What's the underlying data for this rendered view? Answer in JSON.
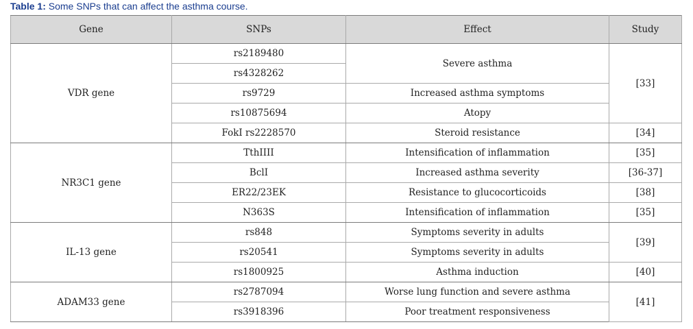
{
  "caption": {
    "label": "Table 1:",
    "text": " Some SNPs that can affect the asthma course."
  },
  "headers": {
    "gene": "Gene",
    "snps": "SNPs",
    "effect": "Effect",
    "study": "Study"
  },
  "groups": [
    {
      "gene": "VDR gene",
      "snps": [
        "rs2189480",
        "rs4328262",
        "rs9729",
        "rs10875694",
        "FokI rs2228570"
      ],
      "effects": [
        "Severe asthma",
        "Increased asthma symptoms",
        "Atopy",
        "Steroid resistance"
      ],
      "studies": [
        "[33]",
        "[34]"
      ]
    },
    {
      "gene": "NR3C1 gene",
      "snps": [
        "TthIIII",
        "BclI",
        "ER22/23EK",
        "N363S"
      ],
      "effects": [
        "Intensification of inflammation",
        "Increased asthma severity",
        "Resistance to glucocorticoids",
        "Intensification of inflammation"
      ],
      "studies": [
        "[35]",
        "[36-37]",
        "[38]",
        "[35]"
      ]
    },
    {
      "gene": "IL-13 gene",
      "snps": [
        "rs848",
        "rs20541",
        "rs1800925"
      ],
      "effects": [
        "Symptoms severity in adults",
        "Symptoms severity in adults",
        "Asthma induction"
      ],
      "studies": [
        "[39]",
        "[40]"
      ]
    },
    {
      "gene": "ADAM33 gene",
      "snps": [
        "rs2787094",
        "rs3918396"
      ],
      "effects": [
        "Worse lung function and severe asthma",
        "Poor treatment responsiveness"
      ],
      "studies": [
        "[41]"
      ]
    }
  ]
}
